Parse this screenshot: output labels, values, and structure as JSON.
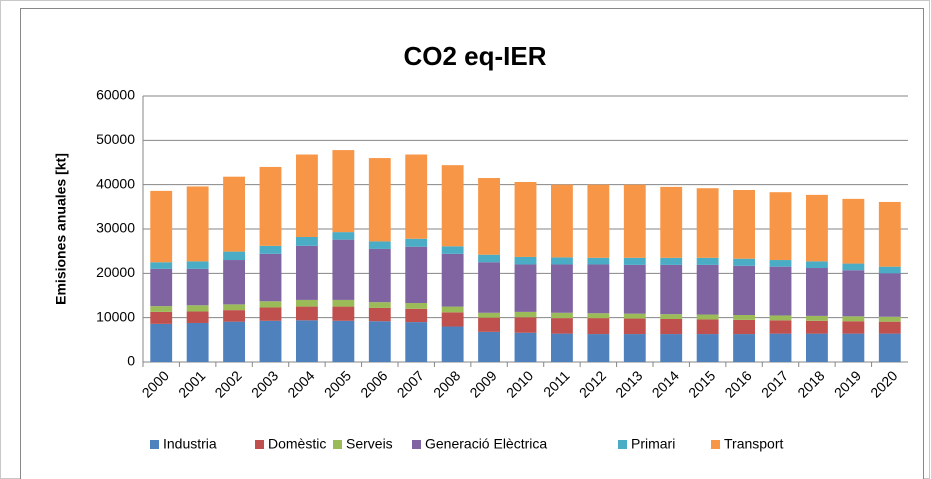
{
  "chart_data": {
    "type": "stacked-bar",
    "title": "CO2 eq-IER",
    "y_label": "Emisiones anuales [kt]",
    "categories": [
      "2000",
      "2001",
      "2002",
      "2003",
      "2004",
      "2005",
      "2006",
      "2007",
      "2008",
      "2009",
      "2010",
      "2011",
      "2012",
      "2013",
      "2014",
      "2015",
      "2016",
      "2017",
      "2018",
      "2019",
      "2020"
    ],
    "series": [
      {
        "name": "Industria",
        "color": "#4f81bd",
        "values": [
          8600,
          8800,
          9100,
          9300,
          9400,
          9300,
          9200,
          9000,
          8000,
          6800,
          6600,
          6400,
          6300,
          6300,
          6300,
          6300,
          6300,
          6400,
          6400,
          6400,
          6400
        ]
      },
      {
        "name": "Domèstic",
        "color": "#c0504d",
        "values": [
          2700,
          2600,
          2600,
          3000,
          3100,
          3200,
          3000,
          3000,
          3200,
          3200,
          3500,
          3500,
          3600,
          3500,
          3400,
          3300,
          3200,
          3000,
          2900,
          2800,
          2700
        ]
      },
      {
        "name": "Serveis",
        "color": "#9bbb59",
        "values": [
          1300,
          1400,
          1300,
          1400,
          1500,
          1500,
          1300,
          1300,
          1300,
          1100,
          1200,
          1200,
          1100,
          1100,
          1100,
          1100,
          1100,
          1100,
          1100,
          1100,
          1100
        ]
      },
      {
        "name": "Generació Elèctrica",
        "color": "#8064a2",
        "values": [
          8400,
          8200,
          10000,
          10700,
          12200,
          13600,
          12000,
          12700,
          11900,
          11400,
          10700,
          10900,
          11000,
          11000,
          11100,
          11200,
          11100,
          11000,
          10800,
          10400,
          9800
        ]
      },
      {
        "name": "Primari",
        "color": "#4bacc6",
        "values": [
          1500,
          1700,
          1900,
          1800,
          2000,
          1700,
          1700,
          1800,
          1700,
          1700,
          1700,
          1600,
          1500,
          1600,
          1600,
          1600,
          1600,
          1500,
          1500,
          1500,
          1500
        ]
      },
      {
        "name": "Transport",
        "color": "#f79646",
        "values": [
          16100,
          16900,
          16900,
          17800,
          18600,
          18500,
          18800,
          19000,
          18300,
          17300,
          16900,
          16400,
          16500,
          16500,
          16000,
          15700,
          15500,
          15300,
          15000,
          14600,
          14600
        ]
      }
    ],
    "ylim": [
      0,
      60000
    ],
    "yticks": [
      0,
      10000,
      20000,
      30000,
      40000,
      50000,
      60000
    ],
    "grid": true,
    "legend": "bottom"
  }
}
